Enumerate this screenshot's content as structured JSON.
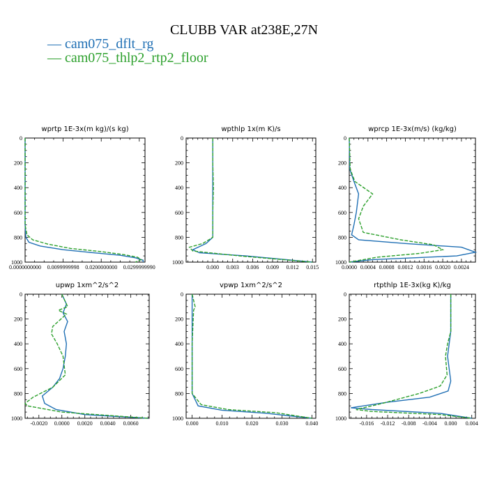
{
  "title": "CLUBB VAR at238E,27N",
  "legend": [
    {
      "label": "cam075_dflt_rg",
      "color": "#1f6fb4"
    },
    {
      "label": "cam075_thlp2_rtp2_floor",
      "color": "#2ca02c"
    }
  ],
  "chart_data": [
    {
      "type": "line",
      "title": "wprtp  1E-3x(m kg)/(s kg)",
      "xlim": [
        0,
        0.0315
      ],
      "ylim": [
        1000,
        0
      ],
      "xticks": [
        0,
        0.01,
        0.02,
        0.03
      ],
      "xticklabels": [
        "0.0000000000",
        "0.0099999998",
        "0.0200000000",
        "0.0299999990"
      ],
      "yticks": [
        0,
        200,
        400,
        600,
        800,
        1000
      ],
      "yticklabels": [
        "0",
        "200",
        "400",
        "600",
        "800",
        "1000"
      ],
      "series": [
        {
          "name": "cam075_dflt_rg",
          "x": [
            0,
            0,
            0.0002,
            0.001,
            0.004,
            0.01,
            0.018,
            0.025,
            0.029,
            0.031,
            0.031
          ],
          "y": [
            0,
            700,
            800,
            840,
            870,
            900,
            925,
            945,
            965,
            985,
            1000
          ]
        },
        {
          "name": "cam075_thlp2_rtp2_floor",
          "x": [
            0,
            0,
            0.0005,
            0.002,
            0.006,
            0.012,
            0.02,
            0.026,
            0.0295,
            0.0305,
            0.029
          ],
          "y": [
            0,
            700,
            780,
            820,
            855,
            890,
            915,
            940,
            960,
            980,
            1000
          ]
        }
      ]
    },
    {
      "type": "line",
      "title": "wpthlp  1x(m K)/s",
      "xlim": [
        -0.004,
        0.0155
      ],
      "ylim": [
        1000,
        0
      ],
      "xticks": [
        0,
        0.003,
        0.006,
        0.009,
        0.012,
        0.015
      ],
      "xticklabels": [
        "0.000",
        "0.003",
        "0.006",
        "0.009",
        "0.012",
        "0.015"
      ],
      "yticks": [
        0,
        200,
        400,
        600,
        800,
        1000
      ],
      "yticklabels": [
        "0",
        "200",
        "400",
        "600",
        "800",
        "1000"
      ],
      "series": [
        {
          "name": "cam075_dflt_rg",
          "x": [
            0,
            0,
            0,
            0,
            0,
            0,
            -0.001,
            -0.003,
            -0.002,
            0.005,
            0.015
          ],
          "y": [
            0,
            200,
            400,
            600,
            750,
            800,
            850,
            900,
            925,
            950,
            1000
          ]
        },
        {
          "name": "cam075_thlp2_rtp2_floor",
          "x": [
            0,
            0,
            0.0001,
            0,
            0,
            0,
            -0.0015,
            -0.0035,
            -0.003,
            0.004,
            0.015
          ],
          "y": [
            0,
            200,
            400,
            600,
            750,
            800,
            850,
            880,
            910,
            950,
            1000
          ]
        }
      ]
    },
    {
      "type": "line",
      "title": "wprcp  1E-3x(m/s) (kg/kg)",
      "xlim": [
        0,
        0.0027
      ],
      "ylim": [
        1000,
        0
      ],
      "xticks": [
        0,
        0.0004,
        0.0008,
        0.0012,
        0.0016,
        0.002,
        0.0024
      ],
      "xticklabels": [
        "0.0000",
        "0.0004",
        "0.0008",
        "0.0012",
        "0.0016",
        "0.0020",
        "0.0024"
      ],
      "yticks": [
        0,
        200,
        400,
        600,
        800,
        1000
      ],
      "yticklabels": [
        "0",
        "200",
        "400",
        "600",
        "800",
        "1000"
      ],
      "series": [
        {
          "name": "cam075_dflt_rg",
          "x": [
            0,
            1e-05,
            0.0001,
            0.0002,
            0.00015,
            0.0001,
            5e-05,
            0.0002,
            0.0012,
            0.0024,
            0.0027,
            0.0023,
            0.0005,
            0
          ],
          "y": [
            0,
            250,
            350,
            450,
            600,
            700,
            780,
            820,
            850,
            880,
            920,
            950,
            980,
            1000
          ]
        },
        {
          "name": "cam075_thlp2_rtp2_floor",
          "x": [
            0,
            2e-05,
            0.00012,
            0.0005,
            0.0003,
            0.0002,
            0.0003,
            0.0011,
            0.0018,
            0.002,
            0.0015,
            0.0006,
            0
          ],
          "y": [
            0,
            250,
            350,
            450,
            550,
            650,
            760,
            820,
            860,
            900,
            930,
            960,
            1000
          ]
        }
      ]
    },
    {
      "type": "line",
      "title": "upwp  1xm^2/s^2",
      "xlim": [
        -0.0032,
        0.0076
      ],
      "ylim": [
        1000,
        0
      ],
      "xticks": [
        -0.002,
        0,
        0.002,
        0.004,
        0.006
      ],
      "xticklabels": [
        "-0.0020",
        "0.0000",
        "0.0020",
        "0.0040",
        "0.0060"
      ],
      "yticks": [
        0,
        200,
        400,
        600,
        800,
        1000
      ],
      "yticklabels": [
        "0",
        "200",
        "400",
        "600",
        "800",
        "1000"
      ],
      "series": [
        {
          "name": "cam075_dflt_rg",
          "x": [
            0,
            0.0004,
            0.0001,
            0.0005,
            0.0002,
            0.0004,
            0.0003,
            0.0001,
            -0.0002,
            -0.0008,
            -0.0017,
            -0.0015,
            -0.0005,
            0.002,
            0.0075
          ],
          "y": [
            0,
            80,
            150,
            220,
            300,
            400,
            500,
            600,
            680,
            750,
            820,
            880,
            930,
            970,
            1000
          ]
        },
        {
          "name": "cam075_thlp2_rtp2_floor",
          "x": [
            0,
            0.0005,
            -0.0003,
            0.0004,
            -0.0008,
            -0.0009,
            -0.0004,
            0.0001,
            0.0003,
            -0.0008,
            -0.0025,
            -0.0032,
            -0.003,
            0,
            0.0075
          ],
          "y": [
            0,
            100,
            130,
            160,
            260,
            320,
            400,
            500,
            650,
            750,
            830,
            880,
            900,
            950,
            1000
          ]
        }
      ]
    },
    {
      "type": "line",
      "title": "vpwp  1xm^2/s^2",
      "xlim": [
        -0.002,
        0.0413
      ],
      "ylim": [
        1000,
        0
      ],
      "xticks": [
        0,
        0.01,
        0.02,
        0.03,
        0.04
      ],
      "xticklabels": [
        "0.000",
        "0.010",
        "0.020",
        "0.030",
        "0.040"
      ],
      "yticks": [
        0,
        200,
        400,
        600,
        800,
        1000
      ],
      "yticklabels": [
        "0",
        "200",
        "400",
        "600",
        "800",
        "1000"
      ],
      "series": [
        {
          "name": "cam075_dflt_rg",
          "x": [
            0,
            0,
            0,
            0,
            0,
            0.002,
            0.01,
            0.025,
            0.04
          ],
          "y": [
            0,
            200,
            400,
            600,
            800,
            900,
            935,
            960,
            1000
          ]
        },
        {
          "name": "cam075_thlp2_rtp2_floor",
          "x": [
            0,
            0.001,
            0.0005,
            0,
            0,
            0.003,
            0.012,
            0.028,
            0.04
          ],
          "y": [
            0,
            100,
            130,
            400,
            800,
            890,
            930,
            955,
            1000
          ]
        }
      ]
    },
    {
      "type": "line",
      "title": "rtpthlp  1E-3x(kg K)/kg",
      "xlim": [
        -0.0193,
        0.0047
      ],
      "ylim": [
        1000,
        0
      ],
      "xticks": [
        -0.016,
        -0.012,
        -0.008,
        -0.004,
        0,
        0.004
      ],
      "xticklabels": [
        "-0.016",
        "-0.012",
        "-0.008",
        "-0.004",
        "0.000",
        "0.004"
      ],
      "yticks": [
        0,
        200,
        400,
        600,
        800,
        1000
      ],
      "yticklabels": [
        "0",
        "200",
        "400",
        "600",
        "800",
        "1000"
      ],
      "series": [
        {
          "name": "cam075_dflt_rg",
          "x": [
            0,
            0,
            -0.0003,
            -0.0006,
            -0.0003,
            0,
            -0.0005,
            -0.004,
            -0.012,
            -0.019,
            -0.015,
            -0.002,
            0.004
          ],
          "y": [
            0,
            300,
            400,
            500,
            600,
            700,
            780,
            830,
            870,
            915,
            930,
            960,
            1000
          ]
        },
        {
          "name": "cam075_thlp2_rtp2_floor",
          "x": [
            0,
            0,
            -0.0006,
            -0.001,
            -0.0007,
            -0.002,
            -0.006,
            -0.013,
            -0.018,
            -0.015,
            -0.002,
            0.004
          ],
          "y": [
            0,
            300,
            400,
            500,
            650,
            740,
            800,
            880,
            930,
            945,
            970,
            1000
          ]
        }
      ]
    }
  ]
}
